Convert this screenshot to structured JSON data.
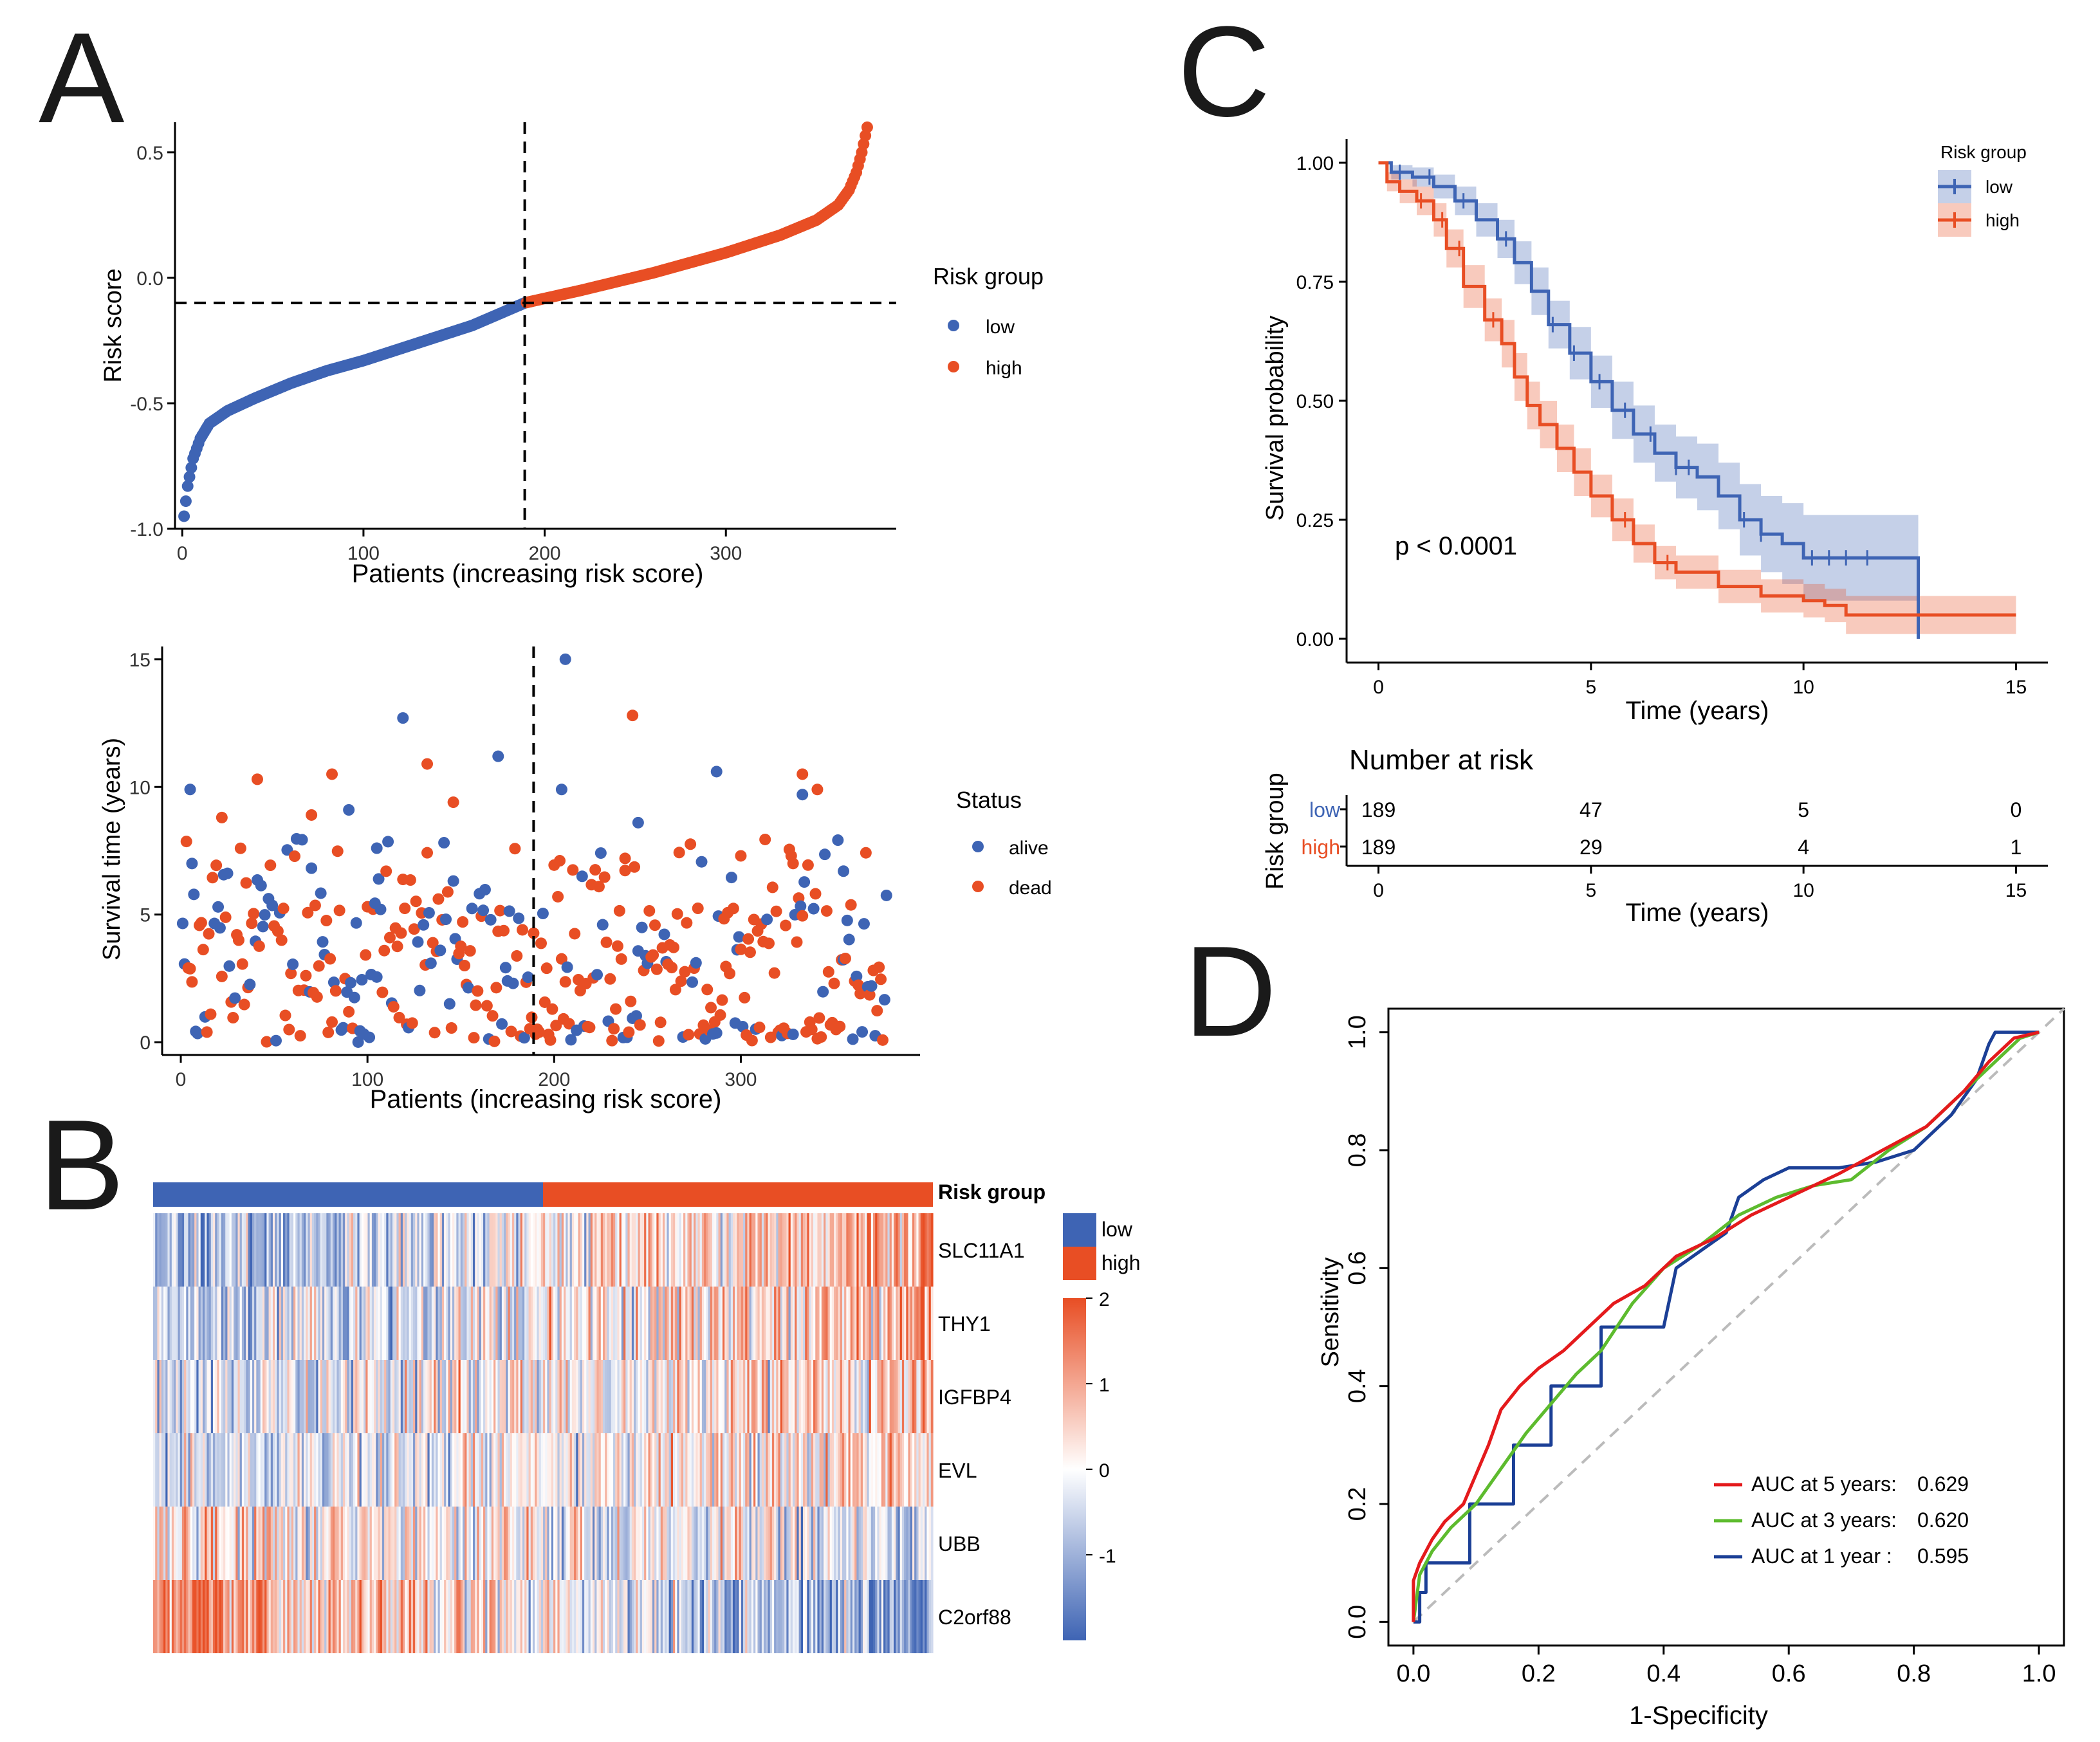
{
  "colors": {
    "low": "#3E64B4",
    "high": "#E84E24",
    "roc5": "#E41A1C",
    "roc3": "#5DBB2E",
    "roc1": "#1B3F96",
    "diag": "#BBBBBB"
  },
  "panels": {
    "A": "A",
    "B": "B",
    "C": "C",
    "D": "D"
  },
  "chart_data": [
    {
      "type": "scatter",
      "id": "A-risk",
      "title": "",
      "xlabel": "Patients (increasing risk score)",
      "ylabel": "Risk score",
      "xlim": [
        -4,
        394
      ],
      "ylim": [
        -1.0,
        0.62
      ],
      "xticks": [
        "0",
        "100",
        "200",
        "300"
      ],
      "xtick_values": [
        0,
        100,
        200,
        300
      ],
      "yticks": [
        "-1.0",
        "-0.5",
        "0.0",
        "0.5"
      ],
      "ytick_values": [
        -1.0,
        -0.5,
        0.0,
        0.5
      ],
      "cutoff": {
        "x": 189,
        "y": -0.1
      },
      "legend": {
        "title": "Risk group",
        "items": [
          "low",
          "high"
        ]
      },
      "n_low": 189,
      "n_high": 189,
      "curve_anchors": [
        [
          1,
          -0.95
        ],
        [
          3,
          -0.83
        ],
        [
          6,
          -0.72
        ],
        [
          10,
          -0.64
        ],
        [
          15,
          -0.58
        ],
        [
          25,
          -0.53
        ],
        [
          40,
          -0.48
        ],
        [
          60,
          -0.42
        ],
        [
          80,
          -0.37
        ],
        [
          100,
          -0.33
        ],
        [
          130,
          -0.26
        ],
        [
          160,
          -0.19
        ],
        [
          189,
          -0.1
        ],
        [
          220,
          -0.05
        ],
        [
          260,
          0.02
        ],
        [
          300,
          0.1
        ],
        [
          330,
          0.17
        ],
        [
          350,
          0.23
        ],
        [
          362,
          0.29
        ],
        [
          368,
          0.35
        ],
        [
          372,
          0.42
        ],
        [
          375,
          0.5
        ],
        [
          378,
          0.6
        ]
      ]
    },
    {
      "type": "scatter",
      "id": "A-survival",
      "title": "",
      "xlabel": "Patients (increasing risk score)",
      "ylabel": "Survival time (years)",
      "xlim": [
        -10,
        396
      ],
      "ylim": [
        -0.5,
        15.5
      ],
      "xticks": [
        "0",
        "100",
        "200",
        "300"
      ],
      "xtick_values": [
        0,
        100,
        200,
        300
      ],
      "yticks": [
        "0",
        "5",
        "10",
        "15"
      ],
      "ytick_values": [
        0,
        5,
        10,
        15
      ],
      "cutoff": {
        "x": 189
      },
      "legend": {
        "title": "Status",
        "items": [
          "alive",
          "dead"
        ]
      },
      "highlight_points": [
        [
          206,
          15.0
        ],
        [
          242,
          12.8
        ],
        [
          119,
          12.7
        ],
        [
          132,
          10.9
        ],
        [
          170,
          11.2
        ],
        [
          81,
          10.5
        ],
        [
          287,
          10.6
        ],
        [
          333,
          10.5
        ],
        [
          5,
          9.9
        ],
        [
          41,
          10.3
        ],
        [
          333,
          9.7
        ],
        [
          341,
          9.9
        ],
        [
          204,
          9.9
        ],
        [
          146,
          9.4
        ],
        [
          90,
          9.1
        ],
        [
          70,
          8.9
        ],
        [
          245,
          8.6
        ],
        [
          22,
          8.8
        ],
        [
          105,
          7.6
        ],
        [
          238,
          7.2
        ],
        [
          6,
          7.0
        ],
        [
          328,
          7.0
        ],
        [
          355,
          6.7
        ],
        [
          300,
          7.3
        ]
      ]
    },
    {
      "type": "heatmap",
      "id": "B",
      "title": "",
      "annotation": {
        "label": "Risk group",
        "low_count": 189,
        "high_count": 189
      },
      "rows": [
        "SLC11A1",
        "THY1",
        "IGFBP4",
        "EVL",
        "UBB",
        "C2orf88"
      ],
      "row_trend": [
        1.0,
        0.7,
        0.45,
        0.4,
        -0.3,
        -1.2
      ],
      "color_scale": {
        "min": -2,
        "max": 2,
        "ticks": [
          "2",
          "1",
          "0",
          "-1"
        ],
        "tick_values": [
          2,
          1,
          0,
          -1
        ]
      },
      "legend": {
        "items": [
          "low",
          "high"
        ]
      }
    },
    {
      "type": "line",
      "id": "C-km",
      "title": "",
      "xlabel": "Time (years)",
      "ylabel": "Survival probability",
      "xlim": [
        -0.75,
        15.75
      ],
      "ylim": [
        -0.05,
        1.05
      ],
      "xticks": [
        "0",
        "5",
        "10",
        "15"
      ],
      "xtick_values": [
        0,
        5,
        10,
        15
      ],
      "yticks": [
        "0.00",
        "0.25",
        "0.50",
        "0.75",
        "1.00"
      ],
      "ytick_values": [
        0,
        0.25,
        0.5,
        0.75,
        1.0
      ],
      "pvalue": "p < 0.0001",
      "legend": {
        "title": "Risk group",
        "items": [
          "low",
          "high"
        ]
      },
      "series": [
        {
          "name": "low",
          "points": [
            [
              0,
              1.0
            ],
            [
              0.3,
              0.98
            ],
            [
              0.8,
              0.97
            ],
            [
              1.3,
              0.95
            ],
            [
              1.8,
              0.92
            ],
            [
              2.3,
              0.88
            ],
            [
              2.8,
              0.84
            ],
            [
              3.2,
              0.79
            ],
            [
              3.6,
              0.73
            ],
            [
              4.0,
              0.66
            ],
            [
              4.5,
              0.6
            ],
            [
              5.0,
              0.54
            ],
            [
              5.5,
              0.48
            ],
            [
              6.0,
              0.43
            ],
            [
              6.5,
              0.39
            ],
            [
              7.0,
              0.36
            ],
            [
              7.5,
              0.34
            ],
            [
              8.0,
              0.3
            ],
            [
              8.5,
              0.25
            ],
            [
              9.0,
              0.22
            ],
            [
              9.5,
              0.2
            ],
            [
              10.0,
              0.17
            ],
            [
              12.7,
              0.17
            ],
            [
              12.7,
              0.0
            ]
          ],
          "band_width": [
            0,
            0.015,
            0.02,
            0.025,
            0.03,
            0.035,
            0.04,
            0.045,
            0.05,
            0.05,
            0.055,
            0.055,
            0.06,
            0.06,
            0.06,
            0.065,
            0.07,
            0.07,
            0.075,
            0.08,
            0.085,
            0.09,
            0.11,
            0.11
          ],
          "censor_x": [
            0.5,
            1.2,
            2.0,
            3.0,
            4.1,
            4.6,
            5.2,
            5.8,
            6.4,
            7.0,
            7.3,
            8.6,
            9.0,
            10.2,
            10.6,
            11.0,
            11.5
          ]
        },
        {
          "name": "high",
          "points": [
            [
              0,
              1.0
            ],
            [
              0.2,
              0.96
            ],
            [
              0.5,
              0.94
            ],
            [
              0.9,
              0.92
            ],
            [
              1.3,
              0.88
            ],
            [
              1.6,
              0.82
            ],
            [
              2.0,
              0.74
            ],
            [
              2.5,
              0.67
            ],
            [
              2.9,
              0.62
            ],
            [
              3.2,
              0.55
            ],
            [
              3.5,
              0.49
            ],
            [
              3.8,
              0.45
            ],
            [
              4.2,
              0.4
            ],
            [
              4.6,
              0.35
            ],
            [
              5.0,
              0.3
            ],
            [
              5.5,
              0.25
            ],
            [
              6.0,
              0.2
            ],
            [
              6.5,
              0.16
            ],
            [
              7.0,
              0.14
            ],
            [
              8.0,
              0.11
            ],
            [
              9.0,
              0.09
            ],
            [
              10.0,
              0.08
            ],
            [
              10.5,
              0.07
            ],
            [
              11.0,
              0.05
            ],
            [
              15.0,
              0.05
            ]
          ],
          "band_width": [
            0,
            0.02,
            0.025,
            0.03,
            0.035,
            0.04,
            0.045,
            0.045,
            0.05,
            0.05,
            0.05,
            0.05,
            0.05,
            0.05,
            0.045,
            0.045,
            0.04,
            0.035,
            0.035,
            0.035,
            0.035,
            0.035,
            0.035,
            0.04,
            0.08
          ],
          "censor_x": [
            1.0,
            1.5,
            1.9,
            2.7,
            5.8,
            6.8
          ]
        }
      ]
    },
    {
      "type": "table",
      "id": "C-risktable",
      "title": "Number at risk",
      "xlabel": "Time (years)",
      "ylabel": "Risk group",
      "xticks": [
        "0",
        "5",
        "10",
        "15"
      ],
      "xtick_values": [
        0,
        5,
        10,
        15
      ],
      "rows": [
        {
          "name": "low",
          "values": [
            "189",
            "47",
            "5",
            "0"
          ]
        },
        {
          "name": "high",
          "values": [
            "189",
            "29",
            "4",
            "1"
          ]
        }
      ]
    },
    {
      "type": "line",
      "id": "D-roc",
      "title": "",
      "xlabel": "1-Specificity",
      "ylabel": "Sensitivity",
      "xlim": [
        -0.04,
        1.04
      ],
      "ylim": [
        -0.04,
        1.04
      ],
      "xticks": [
        "0.0",
        "0.2",
        "0.4",
        "0.6",
        "0.8",
        "1.0"
      ],
      "xtick_values": [
        0,
        0.2,
        0.4,
        0.6,
        0.8,
        1.0
      ],
      "yticks": [
        "0.0",
        "0.2",
        "0.4",
        "0.6",
        "0.8",
        "1.0"
      ],
      "ytick_values": [
        0,
        0.2,
        0.4,
        0.6,
        0.8,
        1.0
      ],
      "series": [
        {
          "name": "AUC at 5 years:",
          "auc": "0.629",
          "points": [
            [
              0,
              0
            ],
            [
              0,
              0.07
            ],
            [
              0.01,
              0.1
            ],
            [
              0.03,
              0.14
            ],
            [
              0.05,
              0.17
            ],
            [
              0.08,
              0.2
            ],
            [
              0.1,
              0.25
            ],
            [
              0.12,
              0.3
            ],
            [
              0.14,
              0.36
            ],
            [
              0.17,
              0.4
            ],
            [
              0.2,
              0.43
            ],
            [
              0.24,
              0.46
            ],
            [
              0.28,
              0.5
            ],
            [
              0.32,
              0.54
            ],
            [
              0.37,
              0.57
            ],
            [
              0.42,
              0.62
            ],
            [
              0.48,
              0.65
            ],
            [
              0.54,
              0.69
            ],
            [
              0.6,
              0.72
            ],
            [
              0.68,
              0.76
            ],
            [
              0.75,
              0.8
            ],
            [
              0.82,
              0.84
            ],
            [
              0.88,
              0.9
            ],
            [
              0.92,
              0.95
            ],
            [
              0.96,
              0.99
            ],
            [
              1.0,
              1.0
            ]
          ]
        },
        {
          "name": "AUC at 3 years:",
          "auc": "0.620",
          "points": [
            [
              0,
              0
            ],
            [
              0.01,
              0.08
            ],
            [
              0.03,
              0.12
            ],
            [
              0.06,
              0.16
            ],
            [
              0.1,
              0.2
            ],
            [
              0.14,
              0.26
            ],
            [
              0.18,
              0.32
            ],
            [
              0.22,
              0.37
            ],
            [
              0.26,
              0.42
            ],
            [
              0.3,
              0.46
            ],
            [
              0.35,
              0.54
            ],
            [
              0.4,
              0.6
            ],
            [
              0.46,
              0.64
            ],
            [
              0.52,
              0.69
            ],
            [
              0.58,
              0.72
            ],
            [
              0.64,
              0.74
            ],
            [
              0.7,
              0.75
            ],
            [
              0.76,
              0.8
            ],
            [
              0.82,
              0.84
            ],
            [
              0.88,
              0.9
            ],
            [
              0.93,
              0.95
            ],
            [
              0.97,
              0.99
            ],
            [
              1.0,
              1.0
            ]
          ]
        },
        {
          "name": "AUC at 1  year :",
          "auc": "0.595",
          "points": [
            [
              0,
              0
            ],
            [
              0.01,
              0
            ],
            [
              0.01,
              0.05
            ],
            [
              0.02,
              0.05
            ],
            [
              0.02,
              0.1
            ],
            [
              0.09,
              0.1
            ],
            [
              0.09,
              0.2
            ],
            [
              0.16,
              0.2
            ],
            [
              0.16,
              0.3
            ],
            [
              0.22,
              0.3
            ],
            [
              0.22,
              0.4
            ],
            [
              0.3,
              0.4
            ],
            [
              0.3,
              0.5
            ],
            [
              0.4,
              0.5
            ],
            [
              0.42,
              0.6
            ],
            [
              0.5,
              0.66
            ],
            [
              0.52,
              0.72
            ],
            [
              0.56,
              0.75
            ],
            [
              0.6,
              0.77
            ],
            [
              0.68,
              0.77
            ],
            [
              0.74,
              0.78
            ],
            [
              0.8,
              0.8
            ],
            [
              0.86,
              0.86
            ],
            [
              0.9,
              0.92
            ],
            [
              0.92,
              0.98
            ],
            [
              0.93,
              1.0
            ],
            [
              1.0,
              1.0
            ]
          ]
        }
      ]
    }
  ]
}
